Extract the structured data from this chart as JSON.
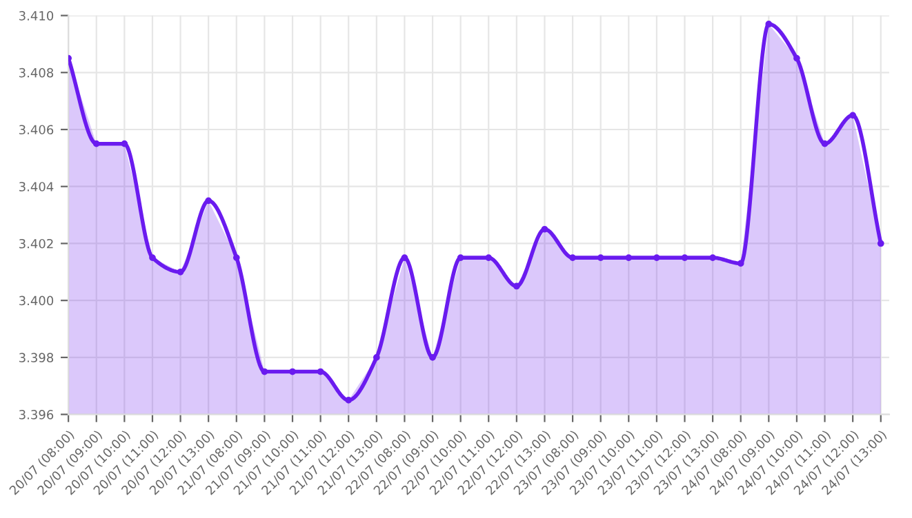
{
  "chart_data": {
    "type": "area",
    "categories": [
      "20/07 (08:00)",
      "20/07 (09:00)",
      "20/07 (10:00)",
      "20/07 (11:00)",
      "20/07 (12:00)",
      "20/07 (13:00)",
      "21/07 (08:00)",
      "21/07 (09:00)",
      "21/07 (10:00)",
      "21/07 (11:00)",
      "21/07 (12:00)",
      "21/07 (13:00)",
      "22/07 (08:00)",
      "22/07 (09:00)",
      "22/07 (10:00)",
      "22/07 (11:00)",
      "22/07 (12:00)",
      "22/07 (13:00)",
      "23/07 (08:00)",
      "23/07 (09:00)",
      "23/07 (10:00)",
      "23/07 (11:00)",
      "23/07 (12:00)",
      "23/07 (13:00)",
      "24/07 (08:00)",
      "24/07 (09:00)",
      "24/07 (10:00)",
      "24/07 (11:00)",
      "24/07 (12:00)",
      "24/07 (13:00)"
    ],
    "series": [
      {
        "color": "#6a1bef",
        "values": [
          3.4085,
          3.4055,
          3.4055,
          3.4015,
          3.401,
          3.4035,
          3.4015,
          3.3975,
          3.3975,
          3.3975,
          3.3965,
          3.398,
          3.4015,
          3.398,
          3.4015,
          3.4015,
          3.4005,
          3.4025,
          3.4015,
          3.4015,
          3.4015,
          3.4015,
          3.4015,
          3.4015,
          3.4013,
          3.4097,
          3.4085,
          3.4055,
          3.4065,
          3.402
        ]
      }
    ],
    "ylim": [
      3.396,
      3.41
    ],
    "yticks": [
      3.396,
      3.398,
      {
        "value": 3.4,
        "label": "3.400"
      },
      3.402,
      3.404,
      3.406,
      3.408,
      {
        "value": 3.41,
        "label": "3.410"
      }
    ],
    "grid": true,
    "marker": "circle",
    "line_style": "solid",
    "legend": false
  }
}
